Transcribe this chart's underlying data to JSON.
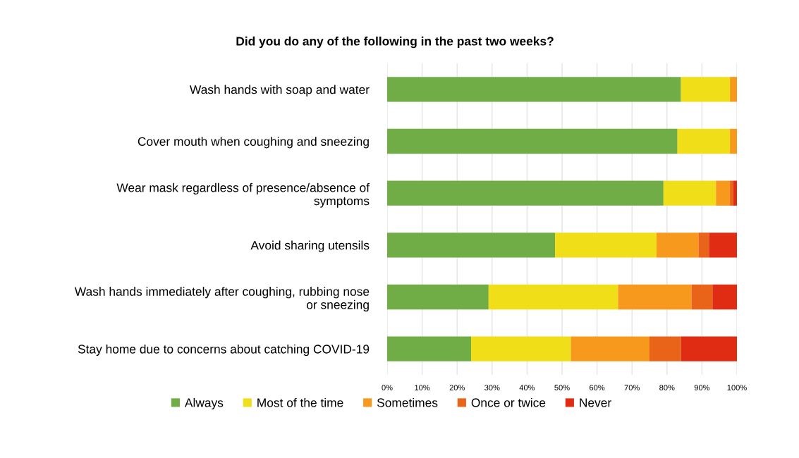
{
  "chart_data": {
    "type": "bar",
    "orientation": "horizontal",
    "stacked": true,
    "title": "Did you do any of the following in the past two weeks?",
    "categories": [
      "Wash hands with soap and water",
      "Cover mouth when coughing and sneezing",
      "Wear mask regardless of presence/absence of\nsymptoms",
      "Avoid sharing utensils",
      "Wash hands immediately after coughing, rubbing nose\nor sneezing",
      "Stay home due to concerns about catching COVID-19"
    ],
    "series": [
      {
        "name": "Always",
        "color": "#70ad47",
        "values": [
          84,
          83,
          79,
          48,
          29,
          24
        ]
      },
      {
        "name": "Most of the time",
        "color": "#f0de18",
        "values": [
          14,
          15,
          15,
          29,
          37,
          28.5
        ]
      },
      {
        "name": "Sometimes",
        "color": "#f7991d",
        "values": [
          2,
          2,
          4,
          12,
          21,
          22.5
        ]
      },
      {
        "name": "Once or twice",
        "color": "#e96319",
        "values": [
          0,
          0,
          1,
          3,
          6,
          9
        ]
      },
      {
        "name": "Never",
        "color": "#df2c13",
        "values": [
          0,
          0,
          1,
          8,
          7,
          16
        ]
      }
    ],
    "xlim": [
      0,
      100
    ],
    "xticks": [
      {
        "value": 0,
        "label": "0%"
      },
      {
        "value": 10,
        "label": "10%"
      },
      {
        "value": 20,
        "label": "20%"
      },
      {
        "value": 30,
        "label": "30%"
      },
      {
        "value": 40,
        "label": "40%"
      },
      {
        "value": 50,
        "label": "50%"
      },
      {
        "value": 60,
        "label": "60%"
      },
      {
        "value": 70,
        "label": "70%"
      },
      {
        "value": 80,
        "label": "80%"
      },
      {
        "value": 90,
        "label": "90%"
      },
      {
        "value": 100,
        "label": "100%"
      }
    ],
    "grid": "x",
    "legend": "bottom"
  }
}
